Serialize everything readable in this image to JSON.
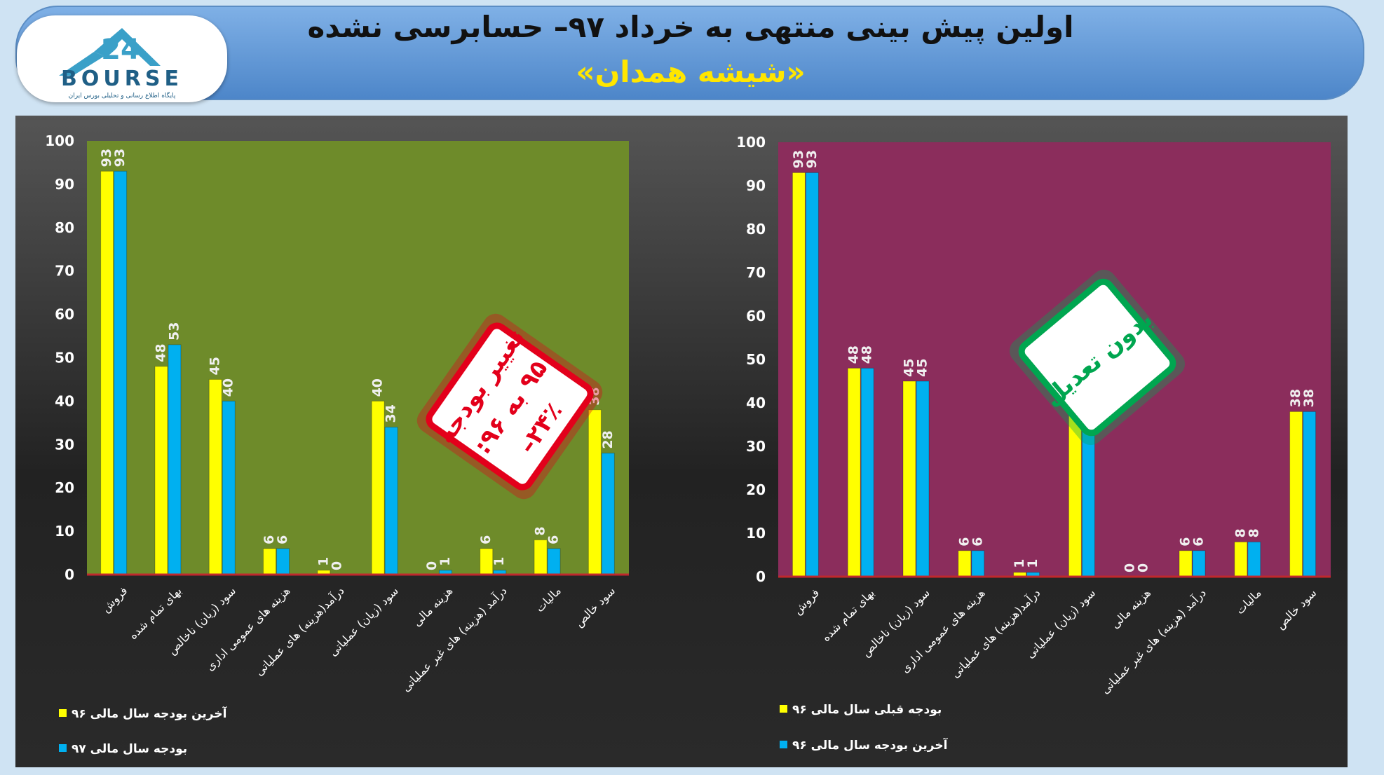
{
  "header": {
    "title": "اولین پیش بینی منتهی به خرداد ۹۷– حسابرسی نشده",
    "subtitle": "«شیشه همدان»",
    "logo_text": "BOURSE",
    "logo_number": "24",
    "logo_tagline": "پایگاه اطلاع رسانی و تحلیلی بورس ایران"
  },
  "colors": {
    "series_yellow": "#ffff00",
    "series_cyan": "#00b0f0",
    "left_plot_bg": "#6e8b2a",
    "right_plot_bg": "#8b2d5c"
  },
  "stamps": {
    "left": {
      "lines": [
        "تغییر بودجه",
        "۹۵ به ۹۶:",
        "۲۴٪–"
      ],
      "color": "#e3001b"
    },
    "right": {
      "lines": [
        "بدون تعدیل"
      ],
      "color": "#00a650"
    }
  },
  "chart_data": [
    {
      "type": "bar",
      "yticks": [
        0,
        10,
        20,
        30,
        40,
        50,
        60,
        70,
        80,
        90,
        100
      ],
      "ylim": [
        0,
        100
      ],
      "categories": [
        "فروش",
        "بهای تمام شده",
        "سود (زیان) ناخالص",
        "هزینه های عمومی اداری",
        "درآمد(هزینه) های عملیاتی",
        "سود (زیان) عملیاتی",
        "هزینه مالی",
        "درآمد (هزینه) های غیر عملیاتی",
        "مالیات",
        "سود خالص"
      ],
      "series": [
        {
          "name": "آخرین بودجه سال مالی ۹۶",
          "color": "#ffff00",
          "values": [
            93,
            48,
            45,
            6,
            1,
            40,
            0,
            6,
            8,
            38
          ]
        },
        {
          "name": "بودجه سال مالی ۹۷",
          "color": "#00b0f0",
          "values": [
            93,
            53,
            40,
            6,
            0,
            34,
            1,
            1,
            6,
            28
          ]
        }
      ]
    },
    {
      "type": "bar",
      "yticks": [
        0,
        10,
        20,
        30,
        40,
        50,
        60,
        70,
        80,
        90,
        100
      ],
      "ylim": [
        0,
        100
      ],
      "categories": [
        "فروش",
        "بهای تمام شده",
        "سود (زیان) ناخالص",
        "هزینه های عمومی اداری",
        "درآمد(هزینه) های عملیاتی",
        "سود (زیان) عملیاتی",
        "هزینه مالی",
        "درآمد (هزینه) های غیر عملیاتی",
        "مالیات",
        "سود خالص"
      ],
      "series": [
        {
          "name": "بودجه قبلی سال مالی ۹۶",
          "color": "#ffff00",
          "values": [
            93,
            48,
            45,
            6,
            1,
            40,
            0,
            6,
            8,
            38
          ]
        },
        {
          "name": "آخرین بودجه سال مالی ۹۶",
          "color": "#00b0f0",
          "values": [
            93,
            48,
            45,
            6,
            1,
            40,
            0,
            6,
            8,
            38
          ]
        }
      ]
    }
  ]
}
